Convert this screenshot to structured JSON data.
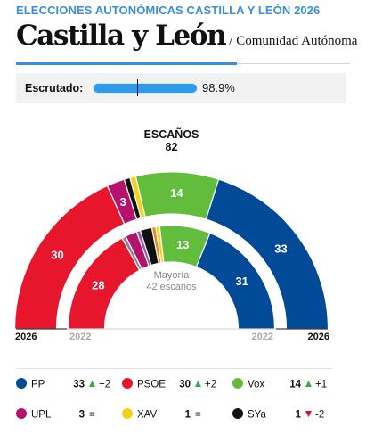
{
  "header": {
    "kicker": "ELECCIONES AUTONÓMICAS CASTILLA Y LEÓN 2026",
    "title": "Castilla y León",
    "subtitle": "/ Comunidad Autónoma"
  },
  "scrutiny": {
    "label": "Escrutado:",
    "value_text": "98.9%",
    "fraction": 0.989
  },
  "seats": {
    "label": "ESCAÑOS",
    "total": "82"
  },
  "majority": {
    "label": "Mayoría",
    "sub": "42 escaños"
  },
  "years": {
    "current": "2026",
    "previous": "2022"
  },
  "arc_order": [
    "PP",
    "Vox",
    "XAV",
    "SYa",
    "UPL",
    "PSOE"
  ],
  "parties": {
    "PP": {
      "name": "PP",
      "color": "#004a98",
      "seats": 33,
      "prev": 31,
      "diff_text": "+2",
      "trend": "up"
    },
    "PSOE": {
      "name": "PSOE",
      "color": "#e8162d",
      "seats": 30,
      "prev": 28,
      "diff_text": "+2",
      "trend": "up"
    },
    "Vox": {
      "name": "Vox",
      "color": "#63bd3c",
      "seats": 14,
      "prev": 13,
      "diff_text": "+1",
      "trend": "up"
    },
    "UPL": {
      "name": "UPL",
      "color": "#b5126e",
      "seats": 3,
      "prev": 3,
      "diff_text": "=",
      "trend": "same"
    },
    "XAV": {
      "name": "XAV",
      "color": "#f3d21c",
      "seats": 1,
      "prev": 1,
      "diff_text": "=",
      "trend": "same"
    },
    "SYa": {
      "name": "SYa",
      "color": "#111111",
      "seats": 1,
      "prev": 3,
      "diff_text": "-2",
      "trend": "down"
    }
  },
  "prev_others": [
    {
      "color": "#f58220",
      "seats": 1
    },
    {
      "color": "#9b59b6",
      "seats": 1
    },
    {
      "color": "#888888",
      "seats": 1
    }
  ],
  "legend_rows": [
    [
      "PP",
      "PSOE",
      "Vox"
    ],
    [
      "UPL",
      "XAV",
      "SYa"
    ]
  ]
}
